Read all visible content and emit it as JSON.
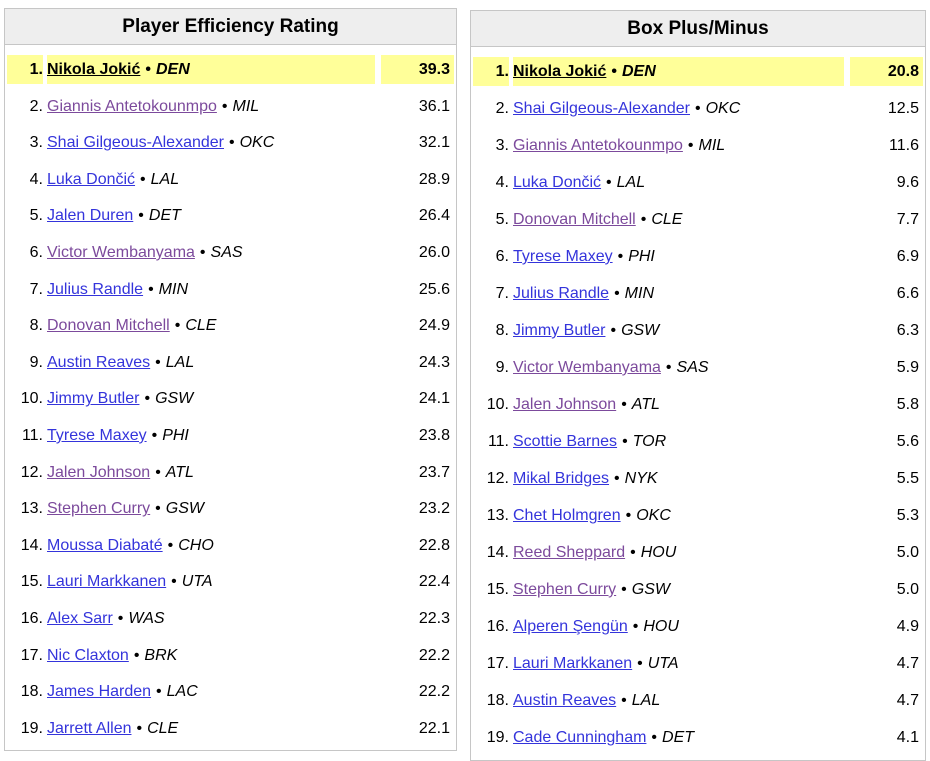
{
  "separator": "•",
  "colors": {
    "highlight": "#ffff99",
    "header_bg": "#eeeeee",
    "border": "#c6c6c6",
    "link": "#3434db",
    "link_visited": "#7c4a9c"
  },
  "boards": [
    {
      "title": "Player Efficiency Rating",
      "rows": [
        {
          "rank": "1.",
          "player": "Nikola Jokić",
          "team": "DEN",
          "value": "39.3",
          "visited": false,
          "highlight": true
        },
        {
          "rank": "2.",
          "player": "Giannis Antetokounmpo",
          "team": "MIL",
          "value": "36.1",
          "visited": true
        },
        {
          "rank": "3.",
          "player": "Shai Gilgeous-Alexander",
          "team": "OKC",
          "value": "32.1",
          "visited": false
        },
        {
          "rank": "4.",
          "player": "Luka Dončić",
          "team": "LAL",
          "value": "28.9",
          "visited": false
        },
        {
          "rank": "5.",
          "player": "Jalen Duren",
          "team": "DET",
          "value": "26.4",
          "visited": false
        },
        {
          "rank": "6.",
          "player": "Victor Wembanyama",
          "team": "SAS",
          "value": "26.0",
          "visited": true
        },
        {
          "rank": "7.",
          "player": "Julius Randle",
          "team": "MIN",
          "value": "25.6",
          "visited": false
        },
        {
          "rank": "8.",
          "player": "Donovan Mitchell",
          "team": "CLE",
          "value": "24.9",
          "visited": true
        },
        {
          "rank": "9.",
          "player": "Austin Reaves",
          "team": "LAL",
          "value": "24.3",
          "visited": false
        },
        {
          "rank": "10.",
          "player": "Jimmy Butler",
          "team": "GSW",
          "value": "24.1",
          "visited": false
        },
        {
          "rank": "11.",
          "player": "Tyrese Maxey",
          "team": "PHI",
          "value": "23.8",
          "visited": false
        },
        {
          "rank": "12.",
          "player": "Jalen Johnson",
          "team": "ATL",
          "value": "23.7",
          "visited": true
        },
        {
          "rank": "13.",
          "player": "Stephen Curry",
          "team": "GSW",
          "value": "23.2",
          "visited": true
        },
        {
          "rank": "14.",
          "player": "Moussa Diabaté",
          "team": "CHO",
          "value": "22.8",
          "visited": false
        },
        {
          "rank": "15.",
          "player": "Lauri Markkanen",
          "team": "UTA",
          "value": "22.4",
          "visited": false
        },
        {
          "rank": "16.",
          "player": "Alex Sarr",
          "team": "WAS",
          "value": "22.3",
          "visited": false
        },
        {
          "rank": "17.",
          "player": "Nic Claxton",
          "team": "BRK",
          "value": "22.2",
          "visited": false
        },
        {
          "rank": "18.",
          "player": "James Harden",
          "team": "LAC",
          "value": "22.2",
          "visited": false
        },
        {
          "rank": "19.",
          "player": "Jarrett Allen",
          "team": "CLE",
          "value": "22.1",
          "visited": false
        }
      ]
    },
    {
      "title": "Box Plus/Minus",
      "rows": [
        {
          "rank": "1.",
          "player": "Nikola Jokić",
          "team": "DEN",
          "value": "20.8",
          "visited": false,
          "highlight": true
        },
        {
          "rank": "2.",
          "player": "Shai Gilgeous-Alexander",
          "team": "OKC",
          "value": "12.5",
          "visited": false
        },
        {
          "rank": "3.",
          "player": "Giannis Antetokounmpo",
          "team": "MIL",
          "value": "11.6",
          "visited": true
        },
        {
          "rank": "4.",
          "player": "Luka Dončić",
          "team": "LAL",
          "value": "9.6",
          "visited": false
        },
        {
          "rank": "5.",
          "player": "Donovan Mitchell",
          "team": "CLE",
          "value": "7.7",
          "visited": true
        },
        {
          "rank": "6.",
          "player": "Tyrese Maxey",
          "team": "PHI",
          "value": "6.9",
          "visited": false
        },
        {
          "rank": "7.",
          "player": "Julius Randle",
          "team": "MIN",
          "value": "6.6",
          "visited": false
        },
        {
          "rank": "8.",
          "player": "Jimmy Butler",
          "team": "GSW",
          "value": "6.3",
          "visited": false
        },
        {
          "rank": "9.",
          "player": "Victor Wembanyama",
          "team": "SAS",
          "value": "5.9",
          "visited": true
        },
        {
          "rank": "10.",
          "player": "Jalen Johnson",
          "team": "ATL",
          "value": "5.8",
          "visited": true
        },
        {
          "rank": "11.",
          "player": "Scottie Barnes",
          "team": "TOR",
          "value": "5.6",
          "visited": false
        },
        {
          "rank": "12.",
          "player": "Mikal Bridges",
          "team": "NYK",
          "value": "5.5",
          "visited": false
        },
        {
          "rank": "13.",
          "player": "Chet Holmgren",
          "team": "OKC",
          "value": "5.3",
          "visited": false
        },
        {
          "rank": "14.",
          "player": "Reed Sheppard",
          "team": "HOU",
          "value": "5.0",
          "visited": true
        },
        {
          "rank": "15.",
          "player": "Stephen Curry",
          "team": "GSW",
          "value": "5.0",
          "visited": true
        },
        {
          "rank": "16.",
          "player": "Alperen Şengün",
          "team": "HOU",
          "value": "4.9",
          "visited": false
        },
        {
          "rank": "17.",
          "player": "Lauri Markkanen",
          "team": "UTA",
          "value": "4.7",
          "visited": false
        },
        {
          "rank": "18.",
          "player": "Austin Reaves",
          "team": "LAL",
          "value": "4.7",
          "visited": false
        },
        {
          "rank": "19.",
          "player": "Cade Cunningham",
          "team": "DET",
          "value": "4.1",
          "visited": false
        }
      ]
    }
  ]
}
